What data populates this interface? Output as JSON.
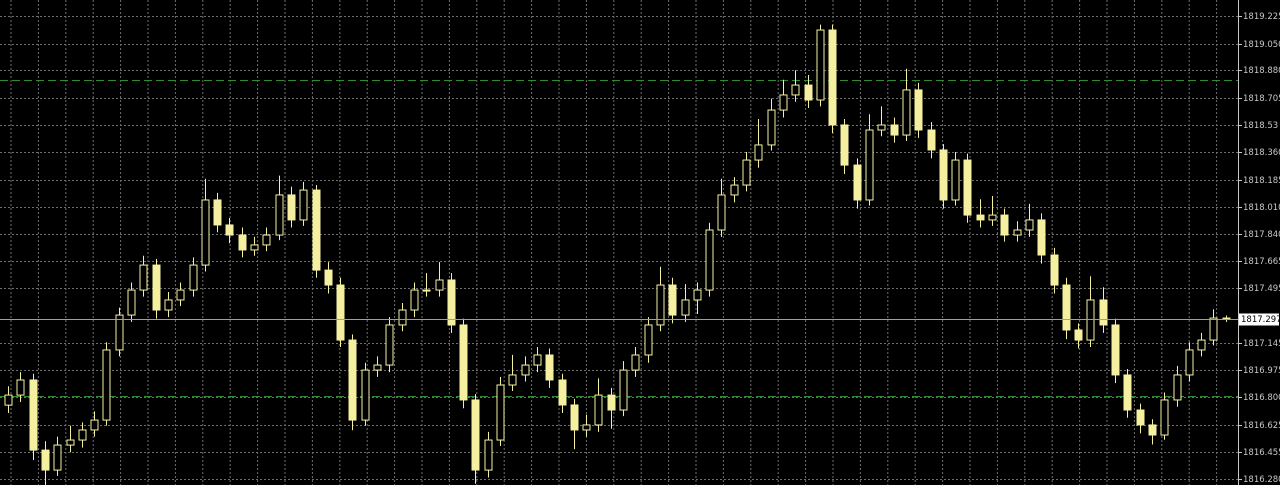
{
  "chart_data": {
    "type": "candlestick",
    "color": "#f5f0a0",
    "grid": true,
    "ylim": [
      1816.242,
      1819.327
    ],
    "yticks": [
      1819.225,
      {
        "value": 1819.05,
        "label": "1819.050"
      },
      {
        "value": 1818.88,
        "label": "1818.880"
      },
      1818.705,
      1818.53,
      {
        "value": 1818.36,
        "label": "1818.360"
      },
      1818.185,
      {
        "value": 1818.01,
        "label": "1818.010"
      },
      {
        "value": 1817.84,
        "label": "1817.840"
      },
      1817.665,
      1817.495,
      1817.145,
      1816.975,
      {
        "value": 1816.8,
        "label": "1816.800"
      },
      1816.625,
      1816.455,
      {
        "value": 1816.28,
        "label": "1816.280"
      }
    ],
    "current_price": 1817.297,
    "levels": [
      1818.818,
      1816.808
    ],
    "open": [
      1816.75,
      1816.814,
      1816.91,
      1816.464,
      1816.337,
      1816.496,
      1816.528,
      1816.592,
      1816.655,
      1817.101,
      1817.323,
      1817.482,
      1817.641,
      1817.355,
      1817.419,
      1817.482,
      1817.641,
      1818.055,
      1817.896,
      1817.832,
      1817.737,
      1817.769,
      1817.832,
      1818.087,
      1817.928,
      1818.118,
      1817.609,
      1817.514,
      1817.164,
      1816.655,
      1816.973,
      1817.005,
      1817.26,
      1817.355,
      1817.482,
      1817.482,
      1817.546,
      1817.26,
      1816.783,
      1816.337,
      1816.528,
      1816.878,
      1816.942,
      1817.005,
      1817.069,
      1816.91,
      1816.751,
      1816.592,
      1816.624,
      1816.814,
      1816.719,
      1816.973,
      1817.069,
      1817.26,
      1817.514,
      1817.323,
      1817.419,
      1817.482,
      1817.864,
      1818.087,
      1818.15,
      1818.309,
      1818.405,
      1818.627,
      1818.723,
      1818.786,
      1818.691,
      1819.136,
      1818.532,
      1818.277,
      1818.055,
      1818.5,
      1818.532,
      1818.468,
      1818.755,
      1818.5,
      1818.373,
      1818.055,
      1818.309,
      1817.959,
      1817.928,
      1817.959,
      1817.832,
      1817.864,
      1817.928,
      1817.705,
      1817.514,
      1817.228,
      1817.164,
      1817.419,
      1817.26,
      1816.942,
      1816.719,
      1816.624,
      1816.56,
      1816.783,
      1816.942,
      1817.101,
      1817.164,
      1817.304
    ],
    "high": [
      1816.87,
      1816.96,
      1816.95,
      1816.52,
      1816.55,
      1816.62,
      1816.64,
      1816.71,
      1817.15,
      1817.37,
      1817.53,
      1817.7,
      1817.68,
      1817.47,
      1817.53,
      1817.69,
      1818.19,
      1818.1,
      1817.94,
      1817.88,
      1817.82,
      1817.88,
      1818.21,
      1818.14,
      1818.17,
      1818.15,
      1817.66,
      1817.56,
      1817.2,
      1817.02,
      1817.06,
      1817.31,
      1817.4,
      1817.53,
      1817.59,
      1817.66,
      1817.59,
      1817.3,
      1816.82,
      1816.58,
      1816.93,
      1817.07,
      1817.06,
      1817.12,
      1817.11,
      1816.95,
      1816.79,
      1816.69,
      1816.92,
      1816.86,
      1817.03,
      1817.12,
      1817.31,
      1817.63,
      1817.56,
      1817.52,
      1817.53,
      1817.91,
      1818.19,
      1818.2,
      1818.36,
      1818.57,
      1818.7,
      1818.82,
      1818.88,
      1818.85,
      1819.17,
      1819.17,
      1818.57,
      1818.32,
      1818.6,
      1818.65,
      1818.58,
      1818.89,
      1818.8,
      1818.55,
      1818.41,
      1818.36,
      1818.35,
      1818.06,
      1818.08,
      1818.0,
      1817.92,
      1818.03,
      1817.97,
      1817.75,
      1817.56,
      1817.27,
      1817.57,
      1817.5,
      1817.3,
      1816.98,
      1816.76,
      1816.66,
      1816.83,
      1817.0,
      1817.15,
      1817.21,
      1817.36,
      1817.32
    ],
    "low": [
      1816.7,
      1816.77,
      1816.4,
      1816.24,
      1816.3,
      1816.45,
      1816.48,
      1816.55,
      1816.62,
      1817.06,
      1817.28,
      1817.44,
      1817.3,
      1817.31,
      1817.38,
      1817.44,
      1817.6,
      1817.85,
      1817.78,
      1817.69,
      1817.7,
      1817.73,
      1817.8,
      1817.88,
      1817.89,
      1817.56,
      1817.46,
      1817.12,
      1816.59,
      1816.62,
      1816.93,
      1816.96,
      1817.22,
      1817.31,
      1817.44,
      1817.44,
      1817.21,
      1816.73,
      1816.25,
      1816.29,
      1816.49,
      1816.84,
      1816.9,
      1816.96,
      1816.86,
      1816.7,
      1816.47,
      1816.55,
      1816.58,
      1816.6,
      1816.68,
      1816.93,
      1817.02,
      1817.22,
      1817.27,
      1817.28,
      1817.33,
      1817.44,
      1817.82,
      1818.04,
      1818.11,
      1818.26,
      1818.37,
      1818.58,
      1818.68,
      1818.64,
      1818.65,
      1818.48,
      1818.22,
      1818.0,
      1818.02,
      1818.46,
      1818.42,
      1818.43,
      1818.45,
      1818.32,
      1818.0,
      1818.02,
      1817.91,
      1817.88,
      1817.89,
      1817.79,
      1817.79,
      1817.82,
      1817.65,
      1817.46,
      1817.17,
      1817.11,
      1817.12,
      1817.21,
      1816.89,
      1816.67,
      1816.57,
      1816.5,
      1816.53,
      1816.74,
      1816.9,
      1817.06,
      1817.13,
      1817.28
    ],
    "close": [
      1816.814,
      1816.91,
      1816.464,
      1816.337,
      1816.496,
      1816.528,
      1816.592,
      1816.655,
      1817.101,
      1817.323,
      1817.482,
      1817.641,
      1817.355,
      1817.419,
      1817.482,
      1817.641,
      1818.055,
      1817.896,
      1817.832,
      1817.737,
      1817.769,
      1817.832,
      1818.087,
      1817.928,
      1818.118,
      1817.609,
      1817.514,
      1817.164,
      1816.655,
      1816.973,
      1817.005,
      1817.26,
      1817.355,
      1817.482,
      1817.482,
      1817.546,
      1817.26,
      1816.783,
      1816.337,
      1816.528,
      1816.878,
      1816.942,
      1817.005,
      1817.069,
      1816.91,
      1816.751,
      1816.592,
      1816.624,
      1816.814,
      1816.719,
      1816.973,
      1817.069,
      1817.26,
      1817.514,
      1817.323,
      1817.419,
      1817.482,
      1817.864,
      1818.087,
      1818.15,
      1818.309,
      1818.405,
      1818.627,
      1818.723,
      1818.786,
      1818.691,
      1819.136,
      1818.532,
      1818.277,
      1818.055,
      1818.5,
      1818.532,
      1818.468,
      1818.755,
      1818.5,
      1818.373,
      1818.055,
      1818.309,
      1817.959,
      1817.928,
      1817.959,
      1817.832,
      1817.864,
      1817.928,
      1817.705,
      1817.514,
      1817.228,
      1817.164,
      1817.419,
      1817.26,
      1816.942,
      1816.719,
      1816.624,
      1816.56,
      1816.783,
      1816.942,
      1817.101,
      1817.164,
      1817.304,
      1817.297
    ]
  }
}
